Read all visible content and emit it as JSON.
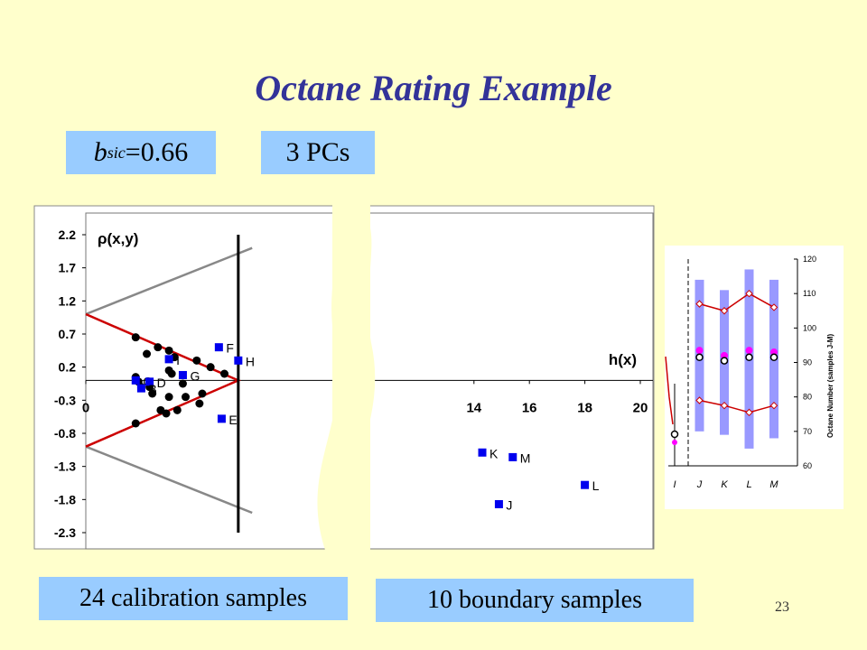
{
  "slide": {
    "title": "Octane Rating Example",
    "bsic_sym": "b",
    "bsic_sub": "sic",
    "bsic_val": "=0.66",
    "pcs": "3 PCs",
    "calib": "24 calibration samples",
    "boundary": "10 boundary samples",
    "page": "23"
  },
  "chart_data": [
    {
      "type": "scatter",
      "title": "",
      "ylabel": "ρ(x,y)",
      "xlabel": "h(x)",
      "xlim": [
        0,
        20
      ],
      "ylim": [
        -2.3,
        2.3
      ],
      "y_ticks": [
        "2.2",
        "1.7",
        "1.2",
        "0.7",
        "0.2",
        "-0.3",
        "-0.8",
        "-1.3",
        "-1.8",
        "-2.3"
      ],
      "x_ticks": [
        "0",
        "14",
        "16",
        "18",
        "20"
      ],
      "grid": false,
      "series": [
        {
          "points": [
            {
              "x": 1.8,
              "y": 0.65
            },
            {
              "x": 2.6,
              "y": 0.5
            },
            {
              "x": 2.2,
              "y": 0.4
            },
            {
              "x": 3.0,
              "y": 0.45
            },
            {
              "x": 3.2,
              "y": 0.35
            },
            {
              "x": 4.0,
              "y": 0.3
            },
            {
              "x": 4.5,
              "y": 0.2
            },
            {
              "x": 5.0,
              "y": 0.1
            },
            {
              "x": 1.8,
              "y": 0.05
            },
            {
              "x": 1.9,
              "y": -0.02
            },
            {
              "x": 2.0,
              "y": -0.1
            },
            {
              "x": 3.0,
              "y": 0.15
            },
            {
              "x": 3.1,
              "y": 0.1
            },
            {
              "x": 2.4,
              "y": -0.2
            },
            {
              "x": 3.0,
              "y": -0.25
            },
            {
              "x": 3.5,
              "y": -0.05
            },
            {
              "x": 3.6,
              "y": -0.25
            },
            {
              "x": 4.1,
              "y": -0.35
            },
            {
              "x": 2.7,
              "y": -0.45
            },
            {
              "x": 2.9,
              "y": -0.5
            },
            {
              "x": 3.3,
              "y": -0.45
            },
            {
              "x": 1.8,
              "y": -0.65
            },
            {
              "x": 4.2,
              "y": -0.2
            },
            {
              "x": 2.3,
              "y": -0.1
            }
          ]
        },
        {
          "points": [
            {
              "label": "F",
              "x": 4.8,
              "y": 0.5
            },
            {
              "label": "H",
              "x": 5.5,
              "y": 0.3
            },
            {
              "label": "I",
              "x": 3.0,
              "y": 0.32
            },
            {
              "label": "G",
              "x": 3.5,
              "y": 0.08
            },
            {
              "label": "C",
              "x": 1.8,
              "y": 0.0
            },
            {
              "label": "D",
              "x": 2.3,
              "y": -0.02
            },
            {
              "label": "B",
              "x": 2.0,
              "y": -0.12
            },
            {
              "label": "E",
              "x": 4.9,
              "y": -0.58
            },
            {
              "label": "K",
              "x": 14.3,
              "y": -1.09
            },
            {
              "label": "M",
              "x": 15.4,
              "y": -1.16
            },
            {
              "label": "L",
              "x": 18.0,
              "y": -1.58
            },
            {
              "label": "J",
              "x": 14.9,
              "y": -1.87
            }
          ]
        }
      ],
      "boundary": {
        "h_limit": 5.5,
        "ci_limit": 1.0
      }
    },
    {
      "type": "line",
      "title": "",
      "ylabel": "Octane Number (samples J-M)",
      "categories": [
        "I",
        "J",
        "K",
        "L",
        "M"
      ],
      "ylim": [
        60,
        120
      ],
      "y_ticks": [
        "60",
        "70",
        "80",
        "90",
        "100",
        "110",
        "120"
      ],
      "upper": [
        null,
        107,
        105,
        110,
        106
      ],
      "lower": [
        null,
        79,
        77.5,
        75.5,
        77.5
      ],
      "predicted": [
        null,
        91.5,
        90.5,
        91.5,
        91.5
      ],
      "reference": [
        null,
        93.5,
        92,
        93.5,
        93
      ],
      "bars": [
        null,
        [
          70,
          114
        ],
        [
          69,
          111
        ],
        [
          65,
          117
        ],
        [
          68,
          114
        ]
      ]
    }
  ]
}
